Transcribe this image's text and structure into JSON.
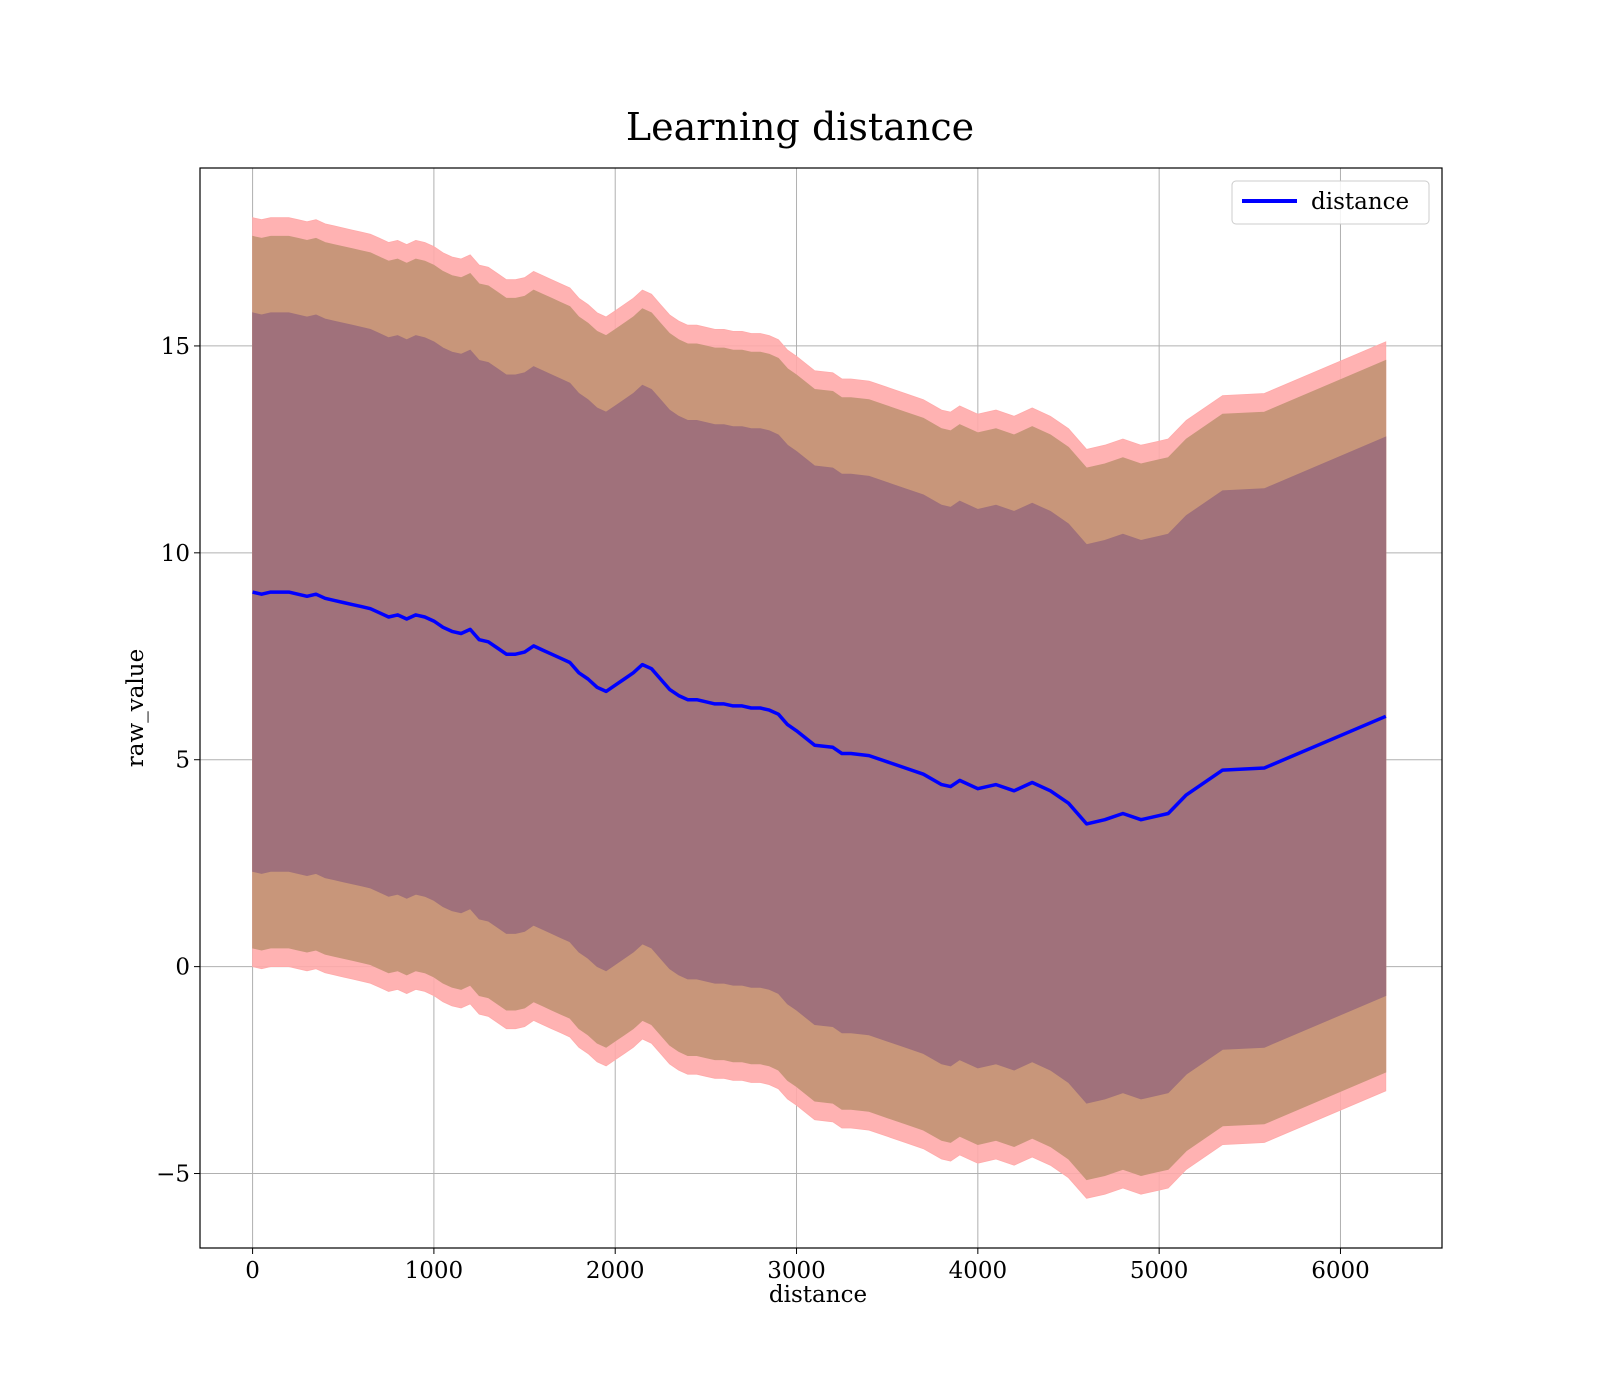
{
  "chart_data": {
    "type": "line",
    "title": "Learning distance",
    "xlabel": "distance",
    "ylabel": "raw_value",
    "xlim": [
      -290,
      6560
    ],
    "ylim": [
      -6.8,
      19.3
    ],
    "xticks": [
      0,
      1000,
      2000,
      3000,
      4000,
      5000,
      6000
    ],
    "xtick_labels": [
      "0",
      "1000",
      "2000",
      "3000",
      "4000",
      "5000",
      "6000"
    ],
    "yticks": [
      -5,
      0,
      5,
      10,
      15
    ],
    "ytick_labels": [
      "−5",
      "0",
      "5",
      "10",
      "15"
    ],
    "grid": true,
    "legend": {
      "position": "top-right",
      "entries": [
        "distance"
      ]
    },
    "colors": {
      "line": "#0000ff",
      "band_outer": "#ffaaaa",
      "band_middle": "#c8967a",
      "band_inner": "#a0717b",
      "grid": "#b0b0b0",
      "axes": "#000000"
    },
    "series": [
      {
        "name": "distance",
        "x": [
          0,
          50,
          100,
          150,
          200,
          250,
          300,
          350,
          400,
          450,
          500,
          550,
          600,
          650,
          700,
          750,
          800,
          850,
          900,
          950,
          1000,
          1050,
          1100,
          1150,
          1200,
          1250,
          1300,
          1350,
          1400,
          1450,
          1500,
          1550,
          1600,
          1650,
          1700,
          1750,
          1800,
          1850,
          1900,
          1950,
          2000,
          2050,
          2100,
          2150,
          2200,
          2250,
          2300,
          2350,
          2400,
          2450,
          2500,
          2550,
          2600,
          2650,
          2700,
          2750,
          2800,
          2850,
          2900,
          2950,
          3000,
          3100,
          3200,
          3250,
          3300,
          3400,
          3500,
          3600,
          3700,
          3800,
          3850,
          3900,
          4000,
          4100,
          4200,
          4300,
          4400,
          4500,
          4600,
          4700,
          4800,
          4900,
          5000,
          5050,
          5150,
          5350,
          5580,
          6250
        ],
        "y": [
          9.05,
          9.0,
          9.05,
          9.05,
          9.05,
          9.0,
          8.95,
          9.0,
          8.9,
          8.85,
          8.8,
          8.75,
          8.7,
          8.65,
          8.55,
          8.45,
          8.5,
          8.4,
          8.5,
          8.45,
          8.35,
          8.2,
          8.1,
          8.05,
          8.15,
          7.9,
          7.85,
          7.7,
          7.55,
          7.55,
          7.6,
          7.75,
          7.65,
          7.55,
          7.45,
          7.35,
          7.1,
          6.95,
          6.75,
          6.65,
          6.8,
          6.95,
          7.1,
          7.3,
          7.2,
          6.95,
          6.7,
          6.55,
          6.45,
          6.45,
          6.4,
          6.35,
          6.35,
          6.3,
          6.3,
          6.25,
          6.25,
          6.2,
          6.1,
          5.85,
          5.7,
          5.35,
          5.3,
          5.15,
          5.15,
          5.1,
          4.95,
          4.8,
          4.65,
          4.4,
          4.35,
          4.5,
          4.3,
          4.4,
          4.25,
          4.45,
          4.25,
          3.95,
          3.45,
          3.55,
          3.7,
          3.55,
          3.65,
          3.7,
          4.15,
          4.75,
          4.8,
          6.05
        ]
      }
    ],
    "bands": [
      {
        "level": "outer",
        "upper_offset": 9.05,
        "lower_offset": 9.05
      },
      {
        "level": "middle",
        "upper_offset": 8.6,
        "lower_offset": 8.6
      },
      {
        "level": "inner",
        "upper_offset": 6.75,
        "lower_offset": 6.75
      }
    ]
  }
}
